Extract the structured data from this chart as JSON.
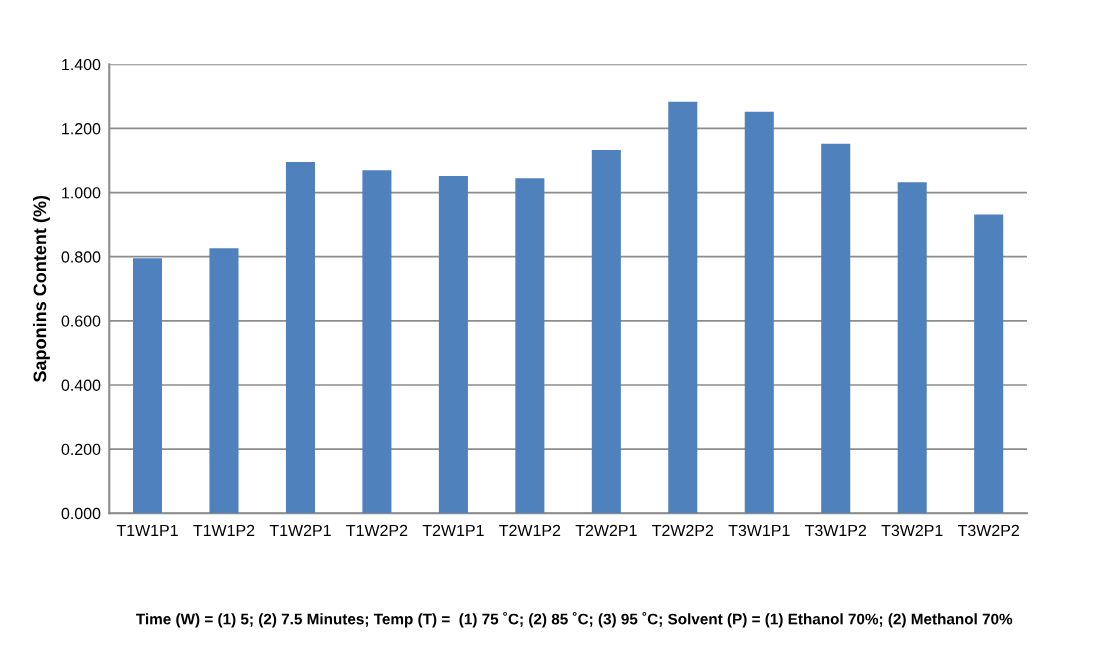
{
  "chart_data": {
    "type": "bar",
    "ylabel": "Saponins Content (%)",
    "categories": [
      "T1W1P1",
      "T1W1P2",
      "T1W2P1",
      "T1W2P2",
      "T2W1P1",
      "T2W1P2",
      "T2W2P1",
      "T2W2P2",
      "T3W1P1",
      "T3W1P2",
      "T3W2P1",
      "T3W2P2"
    ],
    "values": [
      0.795,
      0.826,
      1.095,
      1.07,
      1.052,
      1.045,
      1.133,
      1.283,
      1.252,
      1.152,
      1.032,
      0.932
    ],
    "color": "#4f81bd",
    "ylim": [
      0,
      1.4
    ],
    "yticks": [
      {
        "value": 0,
        "label": "0.000"
      },
      {
        "value": 0.2,
        "label": "0.200"
      },
      {
        "value": 0.4,
        "label": "0.400"
      },
      {
        "value": 0.6,
        "label": "0.600"
      },
      {
        "value": 0.8,
        "label": "0.800"
      },
      {
        "value": 1.0,
        "label": "1.000"
      },
      {
        "value": 1.2,
        "label": "1.200"
      },
      {
        "value": 1.4,
        "label": "1.400"
      }
    ],
    "grid": "y",
    "annotations": [
      "Time (W) = (1) 5; (2) 7.5 Minutes; Temp (T) =  (1) 75 ˚C; (2) 85 ˚C; (3) 95 ˚C; Solvent (P) = (1) Ethanol 70%; (2) Methanol 70%"
    ]
  }
}
